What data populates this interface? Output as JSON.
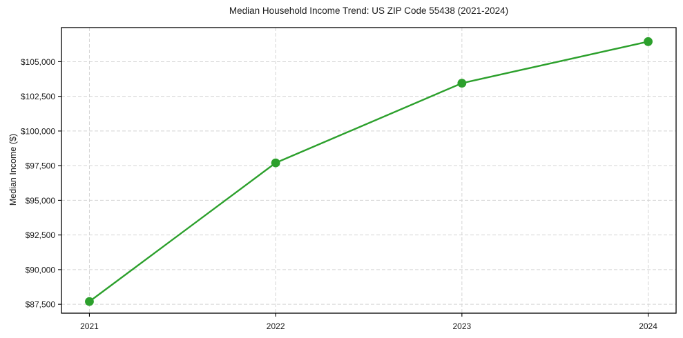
{
  "chart_data": {
    "type": "line",
    "title": "Median Household Income Trend: US ZIP Code 55438 (2021-2024)",
    "xlabel": "",
    "ylabel": "Median Income ($)",
    "x": [
      2021,
      2022,
      2023,
      2024
    ],
    "x_tick_labels": [
      "2021",
      "2022",
      "2023",
      "2024"
    ],
    "series": [
      {
        "name": "Median Household Income",
        "values": [
          87700,
          97700,
          103450,
          106450
        ],
        "color": "#2ca02c"
      }
    ],
    "y_ticks": [
      87500,
      90000,
      92500,
      95000,
      97500,
      100000,
      102500,
      105000
    ],
    "y_tick_labels": [
      "$87,500",
      "$90,000",
      "$92,500",
      "$95,000",
      "$97,500",
      "$100,000",
      "$102,500",
      "$105,000"
    ],
    "xlim": [
      2020.85,
      2024.15
    ],
    "ylim": [
      86860,
      107460
    ],
    "grid": true,
    "grid_style": "dashed",
    "legend_position": "none",
    "colors": {
      "line": "#2ca02c",
      "grid": "#d4d4d4",
      "spine": "#000000",
      "text": "#1a1a1a",
      "background": "#ffffff"
    }
  }
}
